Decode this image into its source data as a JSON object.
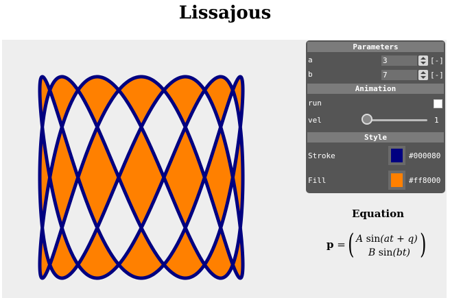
{
  "page": {
    "title": "Lissajous"
  },
  "plot": {
    "a": 3,
    "b": 7,
    "stroke": "#000080",
    "fill": "#ff8000",
    "background": "#eeeeee"
  },
  "panel": {
    "parameters": {
      "header": "Parameters",
      "a_label": "a",
      "a_value": "3",
      "b_label": "b",
      "b_value": "7",
      "reset_label": "[-]"
    },
    "animation": {
      "header": "Animation",
      "run_label": "run",
      "run_checked": false,
      "vel_label": "vel",
      "vel_value": "1"
    },
    "style": {
      "header": "Style",
      "stroke_label": "Stroke",
      "stroke_hex": "#000080",
      "fill_label": "Fill",
      "fill_hex": "#ff8000"
    }
  },
  "equation": {
    "title": "Equation",
    "lhs": "p",
    "equals": "=",
    "line1": {
      "A": "A",
      "fn": "sin",
      "arg": "(at + q)"
    },
    "line2": {
      "B": "B",
      "fn": "sin",
      "arg": "(bt)"
    }
  }
}
